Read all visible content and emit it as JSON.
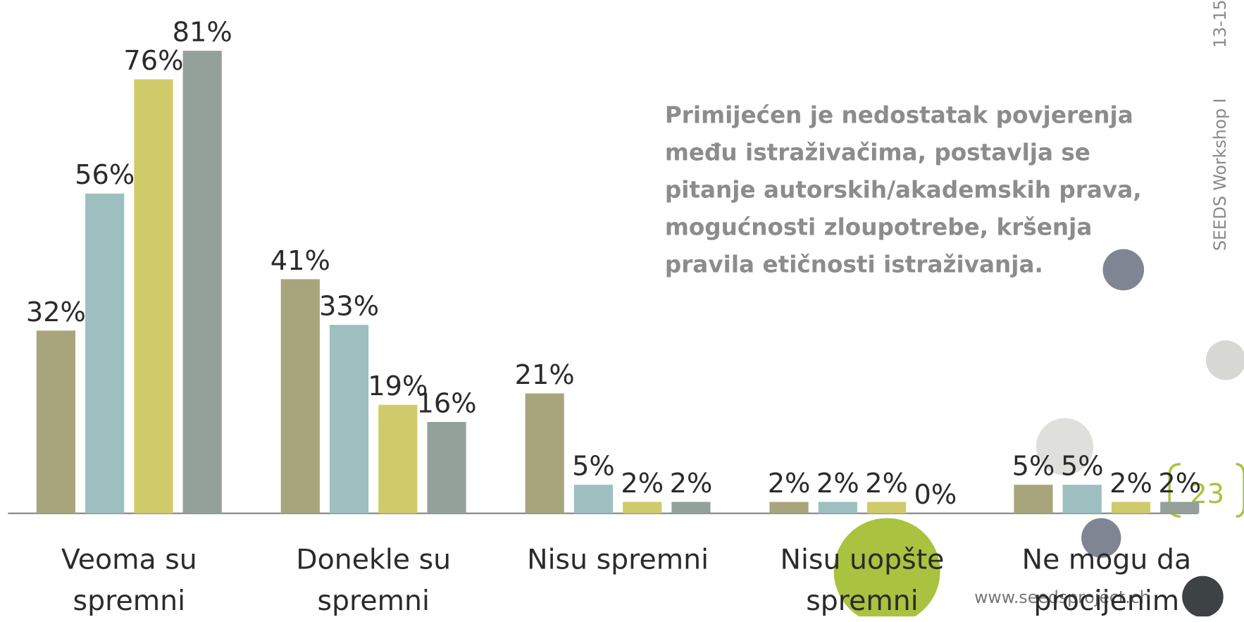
{
  "chart_data": {
    "type": "bar",
    "categories": [
      "Veoma su spremni",
      "Donekle su spremni",
      "Nisu spremni",
      "Nisu uopšte spremni",
      "Ne mogu da procijenim"
    ],
    "series": [
      {
        "color": "#a8a57c",
        "values": [
          32,
          41,
          21,
          2,
          5
        ],
        "value_labels": [
          "32%",
          "41%",
          "21%",
          "2%",
          "5%"
        ]
      },
      {
        "color": "#9dbfbf",
        "values": [
          56,
          33,
          5,
          2,
          5
        ],
        "value_labels": [
          "56%",
          "33%",
          "5%",
          "2%",
          "5%"
        ]
      },
      {
        "color": "#d0cb6a",
        "values": [
          76,
          19,
          2,
          2,
          2
        ],
        "value_labels": [
          "76%",
          "19%",
          "2%",
          "2%",
          "2%"
        ]
      },
      {
        "color": "#93a19a",
        "values": [
          81,
          16,
          2,
          0,
          2
        ],
        "value_labels": [
          "81%",
          "16%",
          "2%",
          "0%",
          "2%"
        ]
      }
    ],
    "annotation": "Primijećen je nedostatak povjerenja među istraživačima, postavlja se pitanje autorskih/akademskih prava, mogućnosti zloupotrebe, kršenja pravila etičnosti istraživanja."
  },
  "footer": {
    "website": "www.seedsproject.ch",
    "page_number": "23",
    "side_text": "SEEDS Workshop I",
    "side_date": "13-15"
  }
}
